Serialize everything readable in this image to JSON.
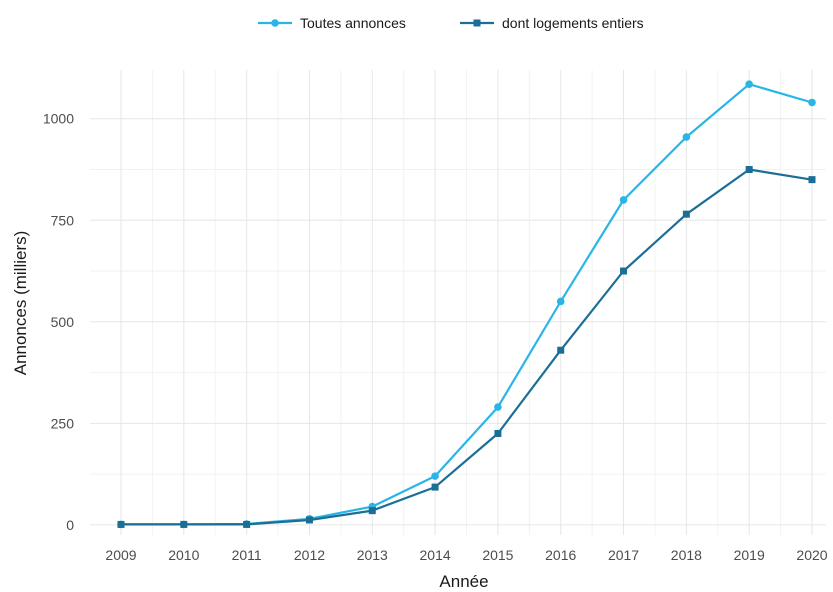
{
  "chart_data": {
    "type": "line",
    "title": "",
    "xlabel": "Année",
    "ylabel": "Annonces (milliers)",
    "x": [
      "2009",
      "2010",
      "2011",
      "2012",
      "2013",
      "2014",
      "2015",
      "2016",
      "2017",
      "2018",
      "2019",
      "2020"
    ],
    "ylim": [
      -25,
      1120
    ],
    "yticks": [
      0,
      250,
      500,
      750,
      1000
    ],
    "grid": true,
    "legend_position": "top",
    "series": [
      {
        "name": "Toutes annonces",
        "color": "#29b6e6",
        "marker": "circle",
        "values": [
          1,
          1,
          2,
          15,
          45,
          120,
          290,
          550,
          800,
          955,
          1085,
          1040
        ]
      },
      {
        "name": "dont logements entiers",
        "color": "#1b6f96",
        "marker": "square",
        "values": [
          1,
          1,
          1,
          12,
          35,
          93,
          225,
          430,
          625,
          765,
          875,
          850
        ]
      }
    ]
  }
}
